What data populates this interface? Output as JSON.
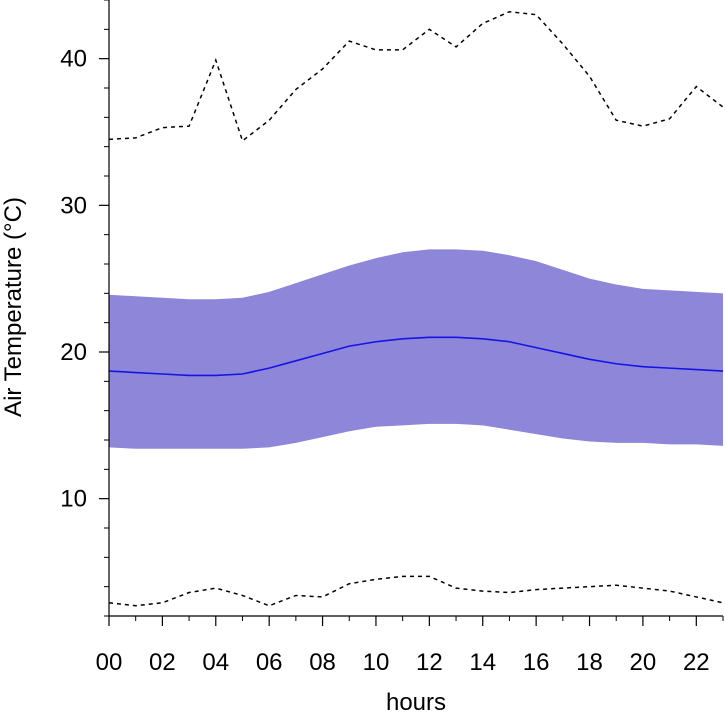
{
  "chart_data": {
    "type": "area",
    "title": "",
    "xlabel": "hours",
    "ylabel": "Air Temperature (°C)",
    "xlim": [
      0,
      23
    ],
    "ylim": [
      2,
      44
    ],
    "x_ticks": [
      0,
      2,
      4,
      6,
      8,
      10,
      12,
      14,
      16,
      18,
      20,
      22
    ],
    "x_tick_labels": [
      "00",
      "02",
      "04",
      "06",
      "08",
      "10",
      "12",
      "14",
      "16",
      "18",
      "20",
      "22"
    ],
    "y_ticks": [
      10,
      20,
      30,
      40
    ],
    "y_tick_labels": [
      "10",
      "20",
      "30",
      "40"
    ],
    "grid": false,
    "legend": "none",
    "x": [
      0,
      1,
      2,
      3,
      4,
      5,
      6,
      7,
      8,
      9,
      10,
      11,
      12,
      13,
      14,
      15,
      16,
      17,
      18,
      19,
      20,
      21,
      22,
      23
    ],
    "series": [
      {
        "role": "mean",
        "style": "solid",
        "color": "#1414e6",
        "values": [
          18.7,
          18.6,
          18.5,
          18.4,
          18.4,
          18.5,
          18.9,
          19.4,
          19.9,
          20.4,
          20.7,
          20.9,
          21.0,
          21.0,
          20.9,
          20.7,
          20.3,
          19.9,
          19.5,
          19.2,
          19.0,
          18.9,
          18.8,
          18.7
        ]
      },
      {
        "role": "band-upper",
        "color": "#8e86d8",
        "values": [
          23.9,
          23.8,
          23.7,
          23.6,
          23.6,
          23.7,
          24.1,
          24.7,
          25.3,
          25.9,
          26.4,
          26.8,
          27.0,
          27.0,
          26.9,
          26.6,
          26.2,
          25.6,
          25.0,
          24.6,
          24.3,
          24.2,
          24.1,
          24.0
        ]
      },
      {
        "role": "band-lower",
        "color": "#8e86d8",
        "values": [
          13.5,
          13.4,
          13.4,
          13.4,
          13.4,
          13.4,
          13.5,
          13.8,
          14.2,
          14.6,
          14.9,
          15.0,
          15.1,
          15.1,
          15.0,
          14.7,
          14.4,
          14.1,
          13.9,
          13.8,
          13.8,
          13.7,
          13.7,
          13.6
        ]
      },
      {
        "role": "max",
        "style": "dashed",
        "color": "#000000",
        "values": [
          34.5,
          34.6,
          35.3,
          35.4,
          39.9,
          34.4,
          35.8,
          37.9,
          39.3,
          41.2,
          40.6,
          40.6,
          42.0,
          40.8,
          42.4,
          43.2,
          43.0,
          41.0,
          38.8,
          35.8,
          35.4,
          35.9,
          38.1,
          36.7
        ]
      },
      {
        "role": "min",
        "style": "dashed",
        "color": "#000000",
        "values": [
          2.9,
          2.7,
          2.9,
          3.6,
          3.9,
          3.4,
          2.7,
          3.4,
          3.3,
          4.2,
          4.5,
          4.7,
          4.7,
          3.9,
          3.7,
          3.6,
          3.8,
          3.9,
          4.0,
          4.1,
          3.9,
          3.7,
          3.3,
          2.9
        ]
      }
    ]
  }
}
